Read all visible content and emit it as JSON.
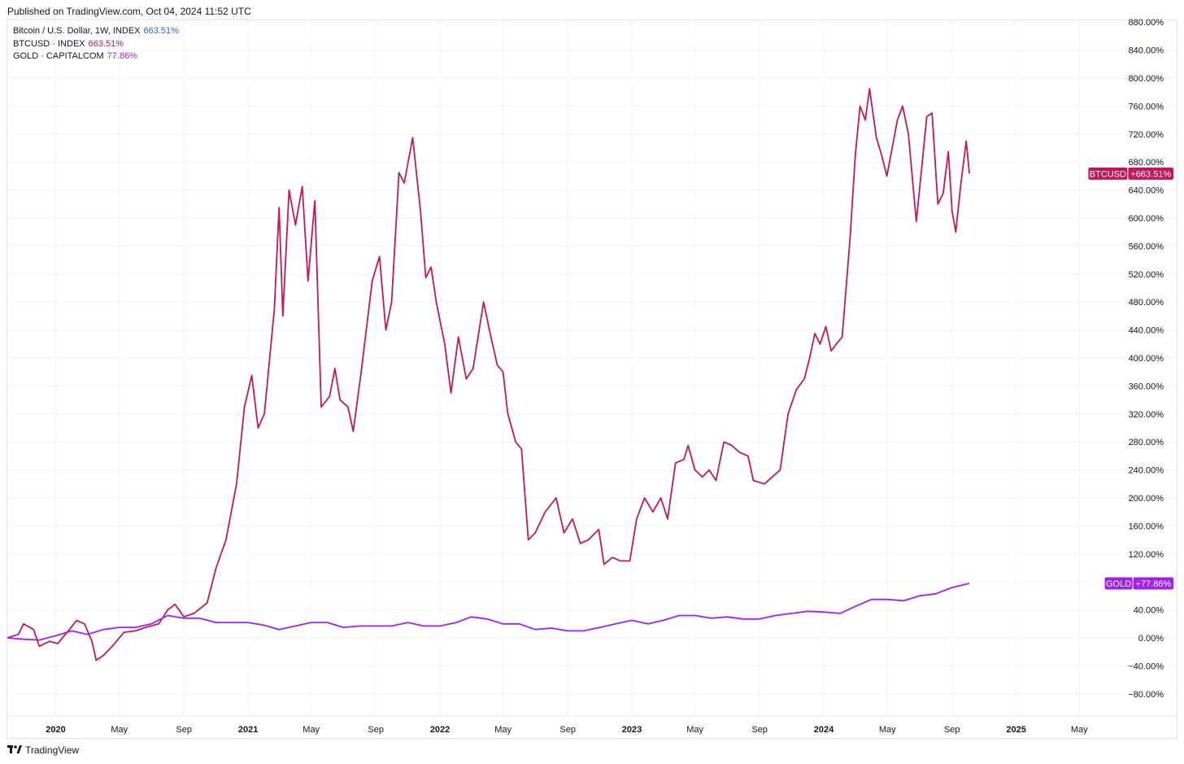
{
  "header": {
    "published": "Published on TradingView.com, Oct 04, 2024 11:52 UTC"
  },
  "legend": [
    {
      "label": "Bitcoin / U.S. Dollar, 1W, INDEX",
      "value": "663.51%",
      "color": "#2962ff"
    },
    {
      "label": "BTCUSD · INDEX",
      "value": "663.51%",
      "color": "#c2185b"
    },
    {
      "label": "GOLD · CAPITALCOM",
      "value": "77.86%",
      "color": "#a020f0"
    }
  ],
  "footer": {
    "brand": "TradingView"
  },
  "chart_data": {
    "type": "line",
    "title": "",
    "xlabel": "",
    "ylabel": "",
    "ylim": [
      -100,
      890
    ],
    "y_ticks": [
      880,
      840,
      800,
      760,
      720,
      680,
      640,
      600,
      560,
      520,
      480,
      440,
      400,
      360,
      320,
      280,
      240,
      200,
      160,
      120,
      80,
      40,
      0,
      -40,
      -80
    ],
    "y_tick_labels": [
      "880.00%",
      "840.00%",
      "800.00%",
      "760.00%",
      "720.00%",
      "680.00%",
      "640.00%",
      "600.00%",
      "560.00%",
      "520.00%",
      "480.00%",
      "440.00%",
      "400.00%",
      "360.00%",
      "320.00%",
      "280.00%",
      "240.00%",
      "200.00%",
      "160.00%",
      "120.00%",
      "80.00%",
      "40.00%",
      "0.00%",
      "−40.00%",
      "−80.00%"
    ],
    "x_range": [
      "2019-10-01",
      "2025-06-30"
    ],
    "x_ticks": [
      {
        "date": "2020-01-01",
        "label": "2020",
        "bold": true
      },
      {
        "date": "2020-05-01",
        "label": "May",
        "bold": false
      },
      {
        "date": "2020-09-01",
        "label": "Sep",
        "bold": false
      },
      {
        "date": "2021-01-01",
        "label": "2021",
        "bold": true
      },
      {
        "date": "2021-05-01",
        "label": "May",
        "bold": false
      },
      {
        "date": "2021-09-01",
        "label": "Sep",
        "bold": false
      },
      {
        "date": "2022-01-01",
        "label": "2022",
        "bold": true
      },
      {
        "date": "2022-05-01",
        "label": "May",
        "bold": false
      },
      {
        "date": "2022-09-01",
        "label": "Sep",
        "bold": false
      },
      {
        "date": "2023-01-01",
        "label": "2023",
        "bold": true
      },
      {
        "date": "2023-05-01",
        "label": "May",
        "bold": false
      },
      {
        "date": "2023-09-01",
        "label": "Sep",
        "bold": false
      },
      {
        "date": "2024-01-01",
        "label": "2024",
        "bold": true
      },
      {
        "date": "2024-05-01",
        "label": "May",
        "bold": false
      },
      {
        "date": "2024-09-01",
        "label": "Sep",
        "bold": false
      },
      {
        "date": "2025-01-01",
        "label": "2025",
        "bold": true
      },
      {
        "date": "2025-05-01",
        "label": "May",
        "bold": false
      }
    ],
    "grid": true,
    "series": [
      {
        "name": "BTCUSD",
        "color": "#c2185b",
        "tag": "BTCUSD",
        "tag_value": "+663.51%",
        "last": 663.51,
        "points": [
          [
            "2019-10-01",
            0
          ],
          [
            "2019-10-22",
            5
          ],
          [
            "2019-11-01",
            20
          ],
          [
            "2019-11-20",
            12
          ],
          [
            "2019-12-01",
            -12
          ],
          [
            "2019-12-20",
            -5
          ],
          [
            "2020-01-05",
            -8
          ],
          [
            "2020-01-25",
            10
          ],
          [
            "2020-02-10",
            25
          ],
          [
            "2020-02-25",
            20
          ],
          [
            "2020-03-10",
            -5
          ],
          [
            "2020-03-18",
            -32
          ],
          [
            "2020-04-01",
            -25
          ],
          [
            "2020-04-20",
            -10
          ],
          [
            "2020-05-10",
            8
          ],
          [
            "2020-06-01",
            10
          ],
          [
            "2020-06-20",
            15
          ],
          [
            "2020-07-15",
            20
          ],
          [
            "2020-08-01",
            40
          ],
          [
            "2020-08-15",
            48
          ],
          [
            "2020-09-01",
            30
          ],
          [
            "2020-09-20",
            35
          ],
          [
            "2020-10-15",
            50
          ],
          [
            "2020-11-01",
            100
          ],
          [
            "2020-11-20",
            140
          ],
          [
            "2020-12-10",
            220
          ],
          [
            "2020-12-25",
            330
          ],
          [
            "2021-01-08",
            375
          ],
          [
            "2021-01-20",
            300
          ],
          [
            "2021-02-01",
            320
          ],
          [
            "2021-02-20",
            470
          ],
          [
            "2021-03-01",
            615
          ],
          [
            "2021-03-08",
            460
          ],
          [
            "2021-03-20",
            640
          ],
          [
            "2021-04-01",
            590
          ],
          [
            "2021-04-14",
            645
          ],
          [
            "2021-04-25",
            510
          ],
          [
            "2021-05-08",
            625
          ],
          [
            "2021-05-20",
            330
          ],
          [
            "2021-06-05",
            345
          ],
          [
            "2021-06-15",
            385
          ],
          [
            "2021-06-25",
            340
          ],
          [
            "2021-07-10",
            330
          ],
          [
            "2021-07-20",
            295
          ],
          [
            "2021-08-05",
            385
          ],
          [
            "2021-08-25",
            510
          ],
          [
            "2021-09-08",
            545
          ],
          [
            "2021-09-20",
            440
          ],
          [
            "2021-10-01",
            480
          ],
          [
            "2021-10-15",
            665
          ],
          [
            "2021-10-25",
            650
          ],
          [
            "2021-11-10",
            715
          ],
          [
            "2021-11-25",
            610
          ],
          [
            "2021-12-05",
            515
          ],
          [
            "2021-12-15",
            530
          ],
          [
            "2021-12-25",
            480
          ],
          [
            "2022-01-10",
            420
          ],
          [
            "2022-01-22",
            350
          ],
          [
            "2022-02-05",
            430
          ],
          [
            "2022-02-20",
            370
          ],
          [
            "2022-03-05",
            385
          ],
          [
            "2022-03-25",
            480
          ],
          [
            "2022-04-05",
            440
          ],
          [
            "2022-04-20",
            390
          ],
          [
            "2022-05-01",
            380
          ],
          [
            "2022-05-10",
            320
          ],
          [
            "2022-05-25",
            280
          ],
          [
            "2022-06-05",
            270
          ],
          [
            "2022-06-18",
            140
          ],
          [
            "2022-07-01",
            150
          ],
          [
            "2022-07-20",
            180
          ],
          [
            "2022-08-10",
            200
          ],
          [
            "2022-08-25",
            150
          ],
          [
            "2022-09-10",
            170
          ],
          [
            "2022-09-25",
            135
          ],
          [
            "2022-10-10",
            140
          ],
          [
            "2022-10-30",
            155
          ],
          [
            "2022-11-09",
            105
          ],
          [
            "2022-11-25",
            115
          ],
          [
            "2022-12-10",
            110
          ],
          [
            "2022-12-28",
            110
          ],
          [
            "2023-01-10",
            170
          ],
          [
            "2023-01-25",
            200
          ],
          [
            "2023-02-10",
            180
          ],
          [
            "2023-02-25",
            200
          ],
          [
            "2023-03-10",
            170
          ],
          [
            "2023-03-25",
            250
          ],
          [
            "2023-04-10",
            255
          ],
          [
            "2023-04-18",
            275
          ],
          [
            "2023-05-01",
            240
          ],
          [
            "2023-05-15",
            230
          ],
          [
            "2023-05-28",
            240
          ],
          [
            "2023-06-10",
            225
          ],
          [
            "2023-06-25",
            280
          ],
          [
            "2023-07-10",
            275
          ],
          [
            "2023-07-25",
            265
          ],
          [
            "2023-08-10",
            260
          ],
          [
            "2023-08-20",
            225
          ],
          [
            "2023-09-10",
            220
          ],
          [
            "2023-09-25",
            230
          ],
          [
            "2023-10-10",
            240
          ],
          [
            "2023-10-25",
            320
          ],
          [
            "2023-11-10",
            355
          ],
          [
            "2023-11-25",
            370
          ],
          [
            "2023-12-05",
            400
          ],
          [
            "2023-12-15",
            435
          ],
          [
            "2023-12-25",
            420
          ],
          [
            "2024-01-05",
            445
          ],
          [
            "2024-01-15",
            410
          ],
          [
            "2024-01-25",
            420
          ],
          [
            "2024-02-05",
            430
          ],
          [
            "2024-02-20",
            570
          ],
          [
            "2024-03-01",
            690
          ],
          [
            "2024-03-10",
            760
          ],
          [
            "2024-03-20",
            740
          ],
          [
            "2024-03-28",
            785
          ],
          [
            "2024-04-10",
            715
          ],
          [
            "2024-04-20",
            690
          ],
          [
            "2024-04-30",
            660
          ],
          [
            "2024-05-10",
            700
          ],
          [
            "2024-05-20",
            740
          ],
          [
            "2024-05-30",
            760
          ],
          [
            "2024-06-10",
            720
          ],
          [
            "2024-06-25",
            595
          ],
          [
            "2024-07-05",
            670
          ],
          [
            "2024-07-15",
            745
          ],
          [
            "2024-07-25",
            750
          ],
          [
            "2024-08-05",
            620
          ],
          [
            "2024-08-15",
            635
          ],
          [
            "2024-08-25",
            695
          ],
          [
            "2024-09-01",
            610
          ],
          [
            "2024-09-08",
            580
          ],
          [
            "2024-09-18",
            650
          ],
          [
            "2024-09-28",
            710
          ],
          [
            "2024-10-04",
            663.51
          ]
        ]
      },
      {
        "name": "GOLD",
        "color": "#a020f0",
        "tag": "GOLD",
        "tag_value": "+77.86%",
        "last": 77.86,
        "points": [
          [
            "2019-10-01",
            0
          ],
          [
            "2019-11-01",
            -2
          ],
          [
            "2019-12-01",
            -3
          ],
          [
            "2020-01-01",
            3
          ],
          [
            "2020-02-01",
            10
          ],
          [
            "2020-03-01",
            5
          ],
          [
            "2020-04-01",
            12
          ],
          [
            "2020-05-01",
            15
          ],
          [
            "2020-06-01",
            15
          ],
          [
            "2020-07-01",
            20
          ],
          [
            "2020-08-01",
            32
          ],
          [
            "2020-09-01",
            28
          ],
          [
            "2020-10-01",
            28
          ],
          [
            "2020-11-01",
            22
          ],
          [
            "2020-12-01",
            22
          ],
          [
            "2021-01-01",
            22
          ],
          [
            "2021-02-01",
            18
          ],
          [
            "2021-03-01",
            12
          ],
          [
            "2021-04-01",
            17
          ],
          [
            "2021-05-01",
            22
          ],
          [
            "2021-06-01",
            22
          ],
          [
            "2021-07-01",
            15
          ],
          [
            "2021-08-01",
            17
          ],
          [
            "2021-09-01",
            17
          ],
          [
            "2021-10-01",
            17
          ],
          [
            "2021-11-01",
            22
          ],
          [
            "2021-12-01",
            17
          ],
          [
            "2022-01-01",
            17
          ],
          [
            "2022-02-01",
            22
          ],
          [
            "2022-03-01",
            30
          ],
          [
            "2022-04-01",
            27
          ],
          [
            "2022-05-01",
            20
          ],
          [
            "2022-06-01",
            20
          ],
          [
            "2022-07-01",
            12
          ],
          [
            "2022-08-01",
            14
          ],
          [
            "2022-09-01",
            10
          ],
          [
            "2022-10-01",
            10
          ],
          [
            "2022-11-01",
            15
          ],
          [
            "2022-12-01",
            20
          ],
          [
            "2023-01-01",
            25
          ],
          [
            "2023-02-01",
            20
          ],
          [
            "2023-03-01",
            25
          ],
          [
            "2023-04-01",
            32
          ],
          [
            "2023-05-01",
            32
          ],
          [
            "2023-06-01",
            28
          ],
          [
            "2023-07-01",
            30
          ],
          [
            "2023-08-01",
            27
          ],
          [
            "2023-09-01",
            27
          ],
          [
            "2023-10-01",
            32
          ],
          [
            "2023-11-01",
            35
          ],
          [
            "2023-12-01",
            38
          ],
          [
            "2024-01-01",
            37
          ],
          [
            "2024-02-01",
            35
          ],
          [
            "2024-03-01",
            45
          ],
          [
            "2024-04-01",
            55
          ],
          [
            "2024-05-01",
            55
          ],
          [
            "2024-06-01",
            53
          ],
          [
            "2024-07-01",
            60
          ],
          [
            "2024-08-01",
            63
          ],
          [
            "2024-09-01",
            72
          ],
          [
            "2024-10-04",
            77.86
          ]
        ]
      }
    ]
  }
}
